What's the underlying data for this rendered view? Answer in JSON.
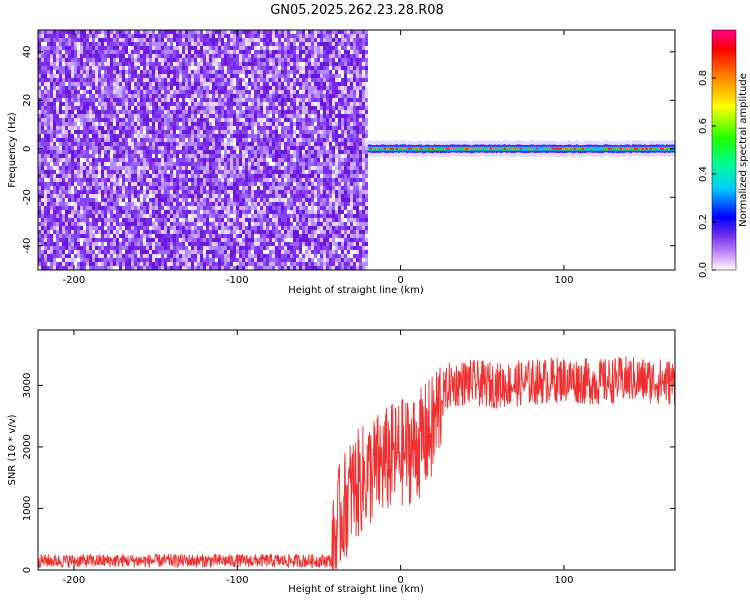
{
  "title": "GN05.2025.262.23.28.R08",
  "chart_data": [
    {
      "type": "heatmap",
      "xlabel": "Height of straight line (km)",
      "ylabel": "Frequency (Hz)",
      "xlim": [
        -222,
        168
      ],
      "ylim": [
        -50,
        49
      ],
      "xticks": [
        -200,
        -100,
        0,
        100
      ],
      "yticks": [
        -40,
        -20,
        0,
        20,
        40
      ],
      "noise_region_x": [
        -222,
        -20
      ],
      "signal_region_x": [
        -20,
        168
      ],
      "signal_frequency": 0,
      "colorbar": {
        "label": "Normalized spectral amplitude",
        "range": [
          0,
          1
        ],
        "ticks": [
          0.0,
          0.2,
          0.4,
          0.6,
          0.8
        ]
      }
    },
    {
      "type": "line",
      "xlabel": "Height of straight line (km)",
      "ylabel": "SNR (10 * v/v)",
      "xlim": [
        -222,
        168
      ],
      "ylim": [
        0,
        3900
      ],
      "xticks": [
        -200,
        -100,
        0,
        100
      ],
      "yticks": [
        0,
        1000,
        2000,
        3000
      ],
      "color": "#f03030",
      "series": [
        {
          "x": [
            -222,
            -180,
            -140,
            -100,
            -60,
            -42,
            -38,
            -30,
            -20,
            -10,
            0,
            10,
            20,
            25,
            30,
            40,
            60,
            80,
            100,
            120,
            140,
            168
          ],
          "values": [
            150,
            150,
            150,
            150,
            150,
            150,
            800,
            1300,
            1550,
            1750,
            1900,
            2000,
            2300,
            2800,
            3000,
            3050,
            3000,
            3050,
            3100,
            3050,
            3100,
            3050
          ]
        }
      ]
    }
  ]
}
